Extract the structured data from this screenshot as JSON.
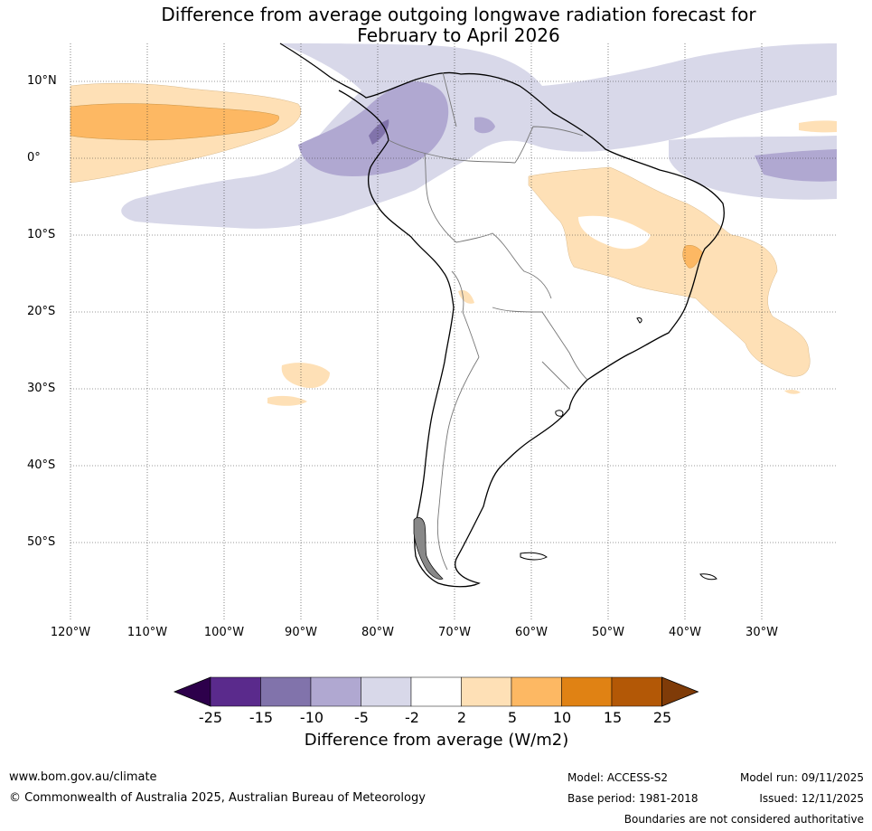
{
  "title": {
    "line1": "Difference from average outgoing longwave radiation forecast for",
    "line2": "February to April 2026"
  },
  "map": {
    "lat_labels": [
      "10°N",
      "0°",
      "10°S",
      "20°S",
      "30°S",
      "40°S",
      "50°S"
    ],
    "lon_labels": [
      "120°W",
      "110°W",
      "100°W",
      "90°W",
      "80°W",
      "70°W",
      "60°W",
      "50°W",
      "40°W",
      "30°W"
    ]
  },
  "colorbar": {
    "labels": [
      "-25",
      "-15",
      "-10",
      "-5",
      "-2",
      "2",
      "5",
      "10",
      "15",
      "25"
    ],
    "colors": [
      "#2d004b",
      "#5a2a8c",
      "#8173ab",
      "#b0a8d1",
      "#d8d8e9",
      "#ffffff",
      "#fee0b6",
      "#fdb863",
      "#e08214",
      "#b35806",
      "#7f3b08"
    ],
    "title": "Difference from average (W/m2)"
  },
  "footer": {
    "website": "www.bom.gov.au/climate",
    "copyright": "© Commonwealth of Australia 2025, Australian Bureau of Meteorology",
    "model": "Model: ACCESS-S2",
    "base_period": "Base period: 1981-2018",
    "model_run": "Model run: 09/11/2025",
    "issued": "Issued: 12/11/2025",
    "disclaimer": "Boundaries are not considered authoritative"
  }
}
